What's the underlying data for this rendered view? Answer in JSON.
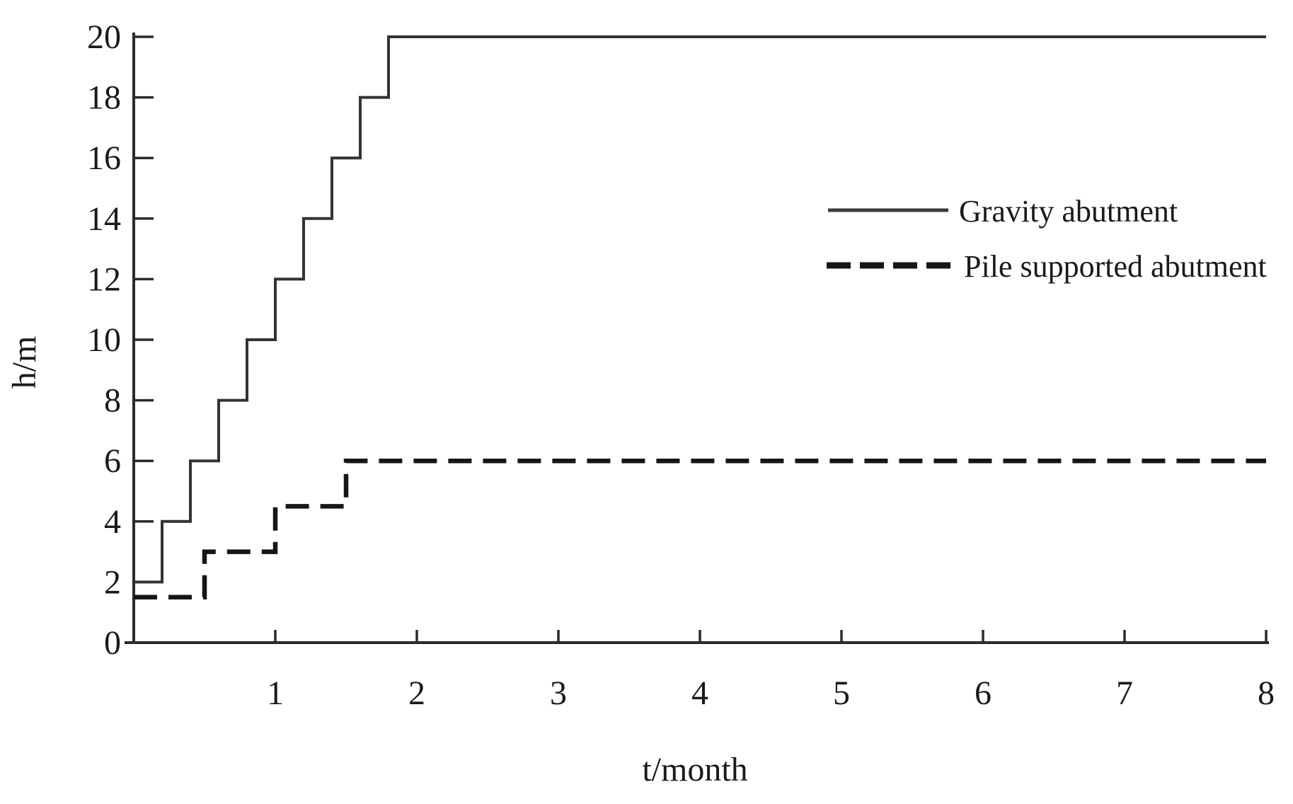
{
  "figure": {
    "background": "#ffffff",
    "text_color": "#1a1a1a",
    "axis_color": "#2b2b2b"
  },
  "chart_data": {
    "type": "line",
    "subtype": "step-post",
    "title": "",
    "xlabel": "t/month",
    "ylabel": "h/m",
    "xlim": [
      0,
      8
    ],
    "ylim": [
      0,
      20
    ],
    "x_ticks": [
      1,
      2,
      3,
      4,
      5,
      6,
      7,
      8
    ],
    "y_ticks": [
      0,
      2,
      4,
      6,
      8,
      10,
      12,
      14,
      16,
      18,
      20
    ],
    "grid": false,
    "legend_position": "upper-right-inside",
    "series": [
      {
        "name": "Gravity abutment",
        "style": "solid",
        "color": "#333333",
        "stroke_width": 4,
        "points": [
          [
            0,
            2
          ],
          [
            0.2,
            4
          ],
          [
            0.4,
            6
          ],
          [
            0.6,
            8
          ],
          [
            0.8,
            10
          ],
          [
            1.0,
            12
          ],
          [
            1.2,
            14
          ],
          [
            1.4,
            16
          ],
          [
            1.6,
            18
          ],
          [
            1.8,
            20
          ],
          [
            8,
            20
          ]
        ]
      },
      {
        "name": "Pile supported abutment",
        "style": "dashed",
        "color": "#161616",
        "stroke_width": 6.5,
        "dash": "33 16",
        "points": [
          [
            0,
            1.5
          ],
          [
            0.5,
            3
          ],
          [
            1.0,
            4.5
          ],
          [
            1.5,
            6
          ],
          [
            8,
            6
          ]
        ]
      }
    ]
  }
}
